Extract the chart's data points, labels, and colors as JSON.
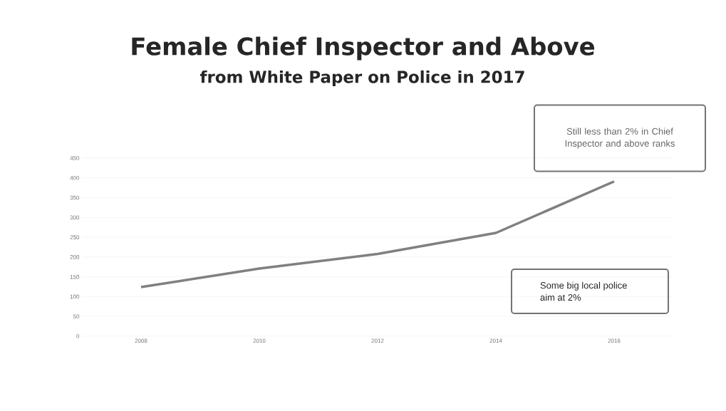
{
  "chart_data": {
    "type": "line",
    "title": "Female Chief Inspector and Above",
    "subtitle": "from White Paper on Police in 2017",
    "categories": [
      "2008",
      "2010",
      "2012",
      "2014",
      "2016"
    ],
    "series": [
      {
        "color": "#808080",
        "values": [
          124,
          171,
          208,
          261,
          391
        ]
      }
    ],
    "ylim": [
      0,
      450
    ],
    "yticks": [
      0,
      50,
      100,
      150,
      200,
      250,
      300,
      350,
      400,
      450
    ],
    "grid": "y",
    "marker": "none",
    "annotations": [
      "Still less than 2% in Chief Inspector and above ranks",
      "Some big local police aim at 2%"
    ]
  }
}
